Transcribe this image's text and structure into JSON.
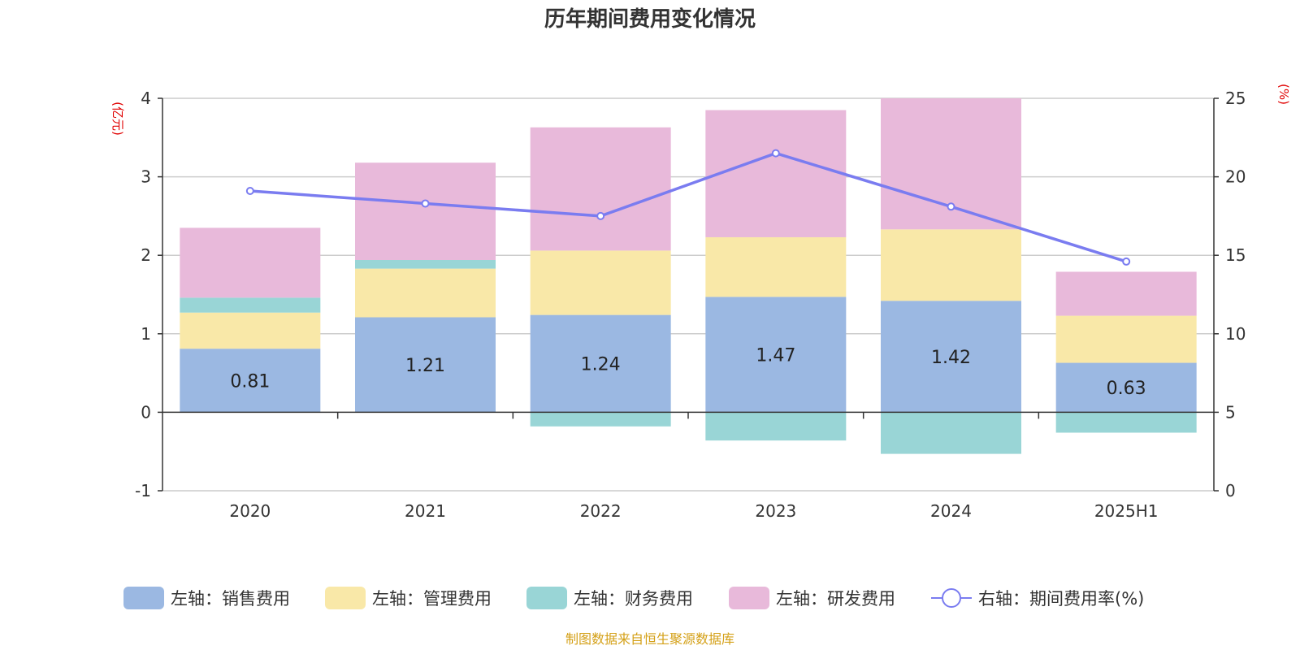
{
  "title": "历年期间费用变化情况",
  "source": "制图数据来自恒生聚源数据库",
  "chart_data": {
    "type": "bar",
    "stacked": true,
    "categories": [
      "2020",
      "2021",
      "2022",
      "2023",
      "2024",
      "2025H1"
    ],
    "y_left": {
      "unit": "(亿元)",
      "range": [
        -1,
        4
      ],
      "ticks": [
        "-1",
        "0",
        "1",
        "2",
        "3",
        "4"
      ]
    },
    "y_right": {
      "unit": "(%)",
      "range": [
        0,
        25
      ],
      "ticks": [
        "0",
        "5",
        "10",
        "15",
        "20",
        "25"
      ]
    },
    "grid": true,
    "legend_position": "bottom",
    "series": [
      {
        "name": "左轴：销售费用",
        "axis": "left",
        "type": "bar",
        "color": "#9bb8e2",
        "values": [
          0.81,
          1.21,
          1.24,
          1.47,
          1.42,
          0.63
        ],
        "labels": [
          "0.81",
          "1.21",
          "1.24",
          "1.47",
          "1.42",
          "0.63"
        ]
      },
      {
        "name": "左轴：管理费用",
        "axis": "left",
        "type": "bar",
        "color": "#f9e8a8",
        "values": [
          0.46,
          0.62,
          0.82,
          0.76,
          0.91,
          0.6
        ]
      },
      {
        "name": "左轴：财务费用",
        "axis": "left",
        "type": "bar",
        "color": "#99d5d6",
        "values": [
          0.19,
          0.11,
          -0.18,
          -0.36,
          -0.53,
          -0.26
        ]
      },
      {
        "name": "左轴：研发费用",
        "axis": "left",
        "type": "bar",
        "color": "#e8b9da",
        "values": [
          0.89,
          1.24,
          1.57,
          1.62,
          1.67,
          0.56
        ]
      },
      {
        "name": "右轴：期间费用率(%)",
        "axis": "right",
        "type": "line",
        "color": "#7a7cf0",
        "values": [
          19.1,
          18.3,
          17.5,
          21.5,
          18.1,
          14.6
        ]
      }
    ]
  }
}
